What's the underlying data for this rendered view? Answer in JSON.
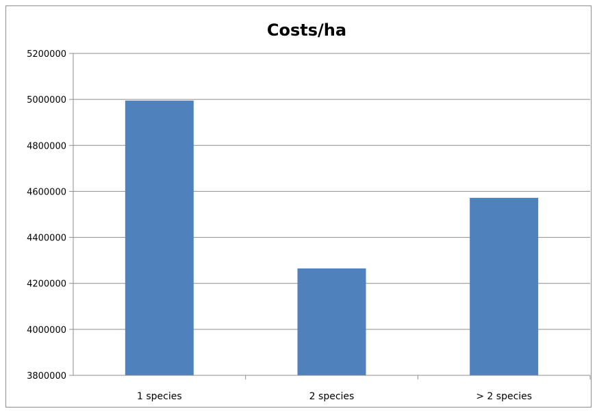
{
  "chart_data": {
    "type": "bar",
    "title": "Costs/ha",
    "categories": [
      "1 species",
      "2 species",
      "> 2 species"
    ],
    "values": [
      4995000,
      4265000,
      4572000
    ],
    "ylim": [
      3800000,
      5200000
    ],
    "yticks": [
      3800000,
      4000000,
      4200000,
      4400000,
      4600000,
      4800000,
      5000000,
      5200000
    ],
    "ytick_labels": [
      "3800000",
      "4000000",
      "4200000",
      "4400000",
      "4600000",
      "4800000",
      "5000000",
      "5200000"
    ],
    "grid": true,
    "legend": "none",
    "bar_color": "#4f81bd"
  }
}
